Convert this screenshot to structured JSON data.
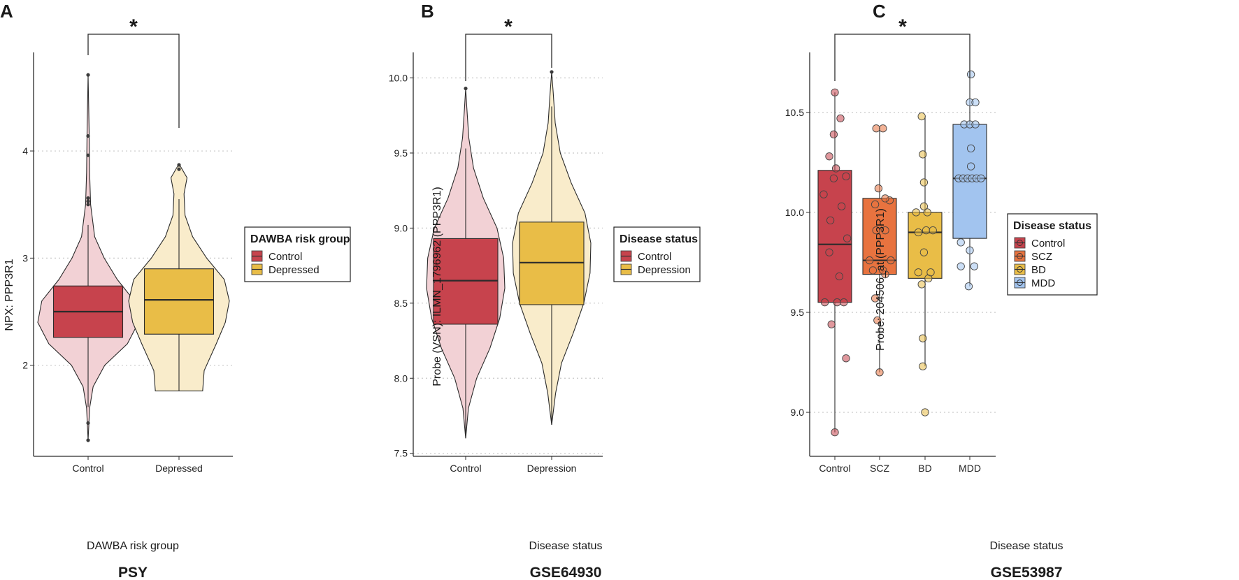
{
  "colors": {
    "control": "#c7434d",
    "control_light": "#f2d1d5",
    "depressed": "#e9bd47",
    "depressed_light": "#f9eccb",
    "scz": "#e8733f",
    "bd": "#e9bd47",
    "mdd": "#a2c4ef",
    "grid": "#c8c8c8",
    "line": "#2b2b2b"
  },
  "chart_data": [
    {
      "type": "violin+box",
      "panel": "A",
      "title": "PSY",
      "xlabel": "DAWBA risk group",
      "ylabel": "NPX: PPP3R1",
      "ylim": [
        1.15,
        4.92
      ],
      "yticks": [
        "2",
        "3",
        "4"
      ],
      "categories": [
        "Control",
        "Depressed"
      ],
      "legend": {
        "title": "DAWBA risk group",
        "entries": [
          "Control",
          "Depressed"
        ]
      },
      "significance": {
        "from": "Control",
        "to": "Depressed",
        "label": "*"
      },
      "groups": [
        {
          "name": "Control",
          "q1": 2.26,
          "median": 2.5,
          "q3": 2.74,
          "whisker_low": 1.61,
          "whisker_high": 3.31,
          "violin": [
            [
              1.3,
              0.0
            ],
            [
              1.6,
              0.03
            ],
            [
              1.8,
              0.1
            ],
            [
              2.0,
              0.33
            ],
            [
              2.2,
              0.78
            ],
            [
              2.4,
              1.0
            ],
            [
              2.6,
              0.92
            ],
            [
              2.8,
              0.58
            ],
            [
              3.0,
              0.32
            ],
            [
              3.2,
              0.13
            ],
            [
              3.5,
              0.05
            ],
            [
              3.8,
              0.03
            ],
            [
              4.2,
              0.02
            ],
            [
              4.71,
              0.0
            ]
          ],
          "outliers": [
            1.3,
            1.46,
            3.5,
            3.53,
            3.56,
            3.96,
            4.14,
            4.71
          ]
        },
        {
          "name": "Depressed",
          "q1": 2.29,
          "median": 2.61,
          "q3": 2.9,
          "whisker_low": 1.76,
          "whisker_high": 3.55,
          "violin": [
            [
              1.76,
              0.47
            ],
            [
              1.95,
              0.5
            ],
            [
              2.2,
              0.74
            ],
            [
              2.4,
              0.92
            ],
            [
              2.6,
              1.0
            ],
            [
              2.8,
              0.9
            ],
            [
              3.0,
              0.55
            ],
            [
              3.2,
              0.27
            ],
            [
              3.4,
              0.12
            ],
            [
              3.6,
              0.1
            ],
            [
              3.75,
              0.16
            ],
            [
              3.88,
              0.0
            ]
          ],
          "outliers": [
            3.83,
            3.87
          ]
        }
      ]
    },
    {
      "type": "violin+box",
      "panel": "B",
      "title": "GSE64930",
      "xlabel": "Disease status",
      "ylabel": "Probe (VSN): ILMN_1796962 (PPP3R1)",
      "ylim": [
        7.48,
        10.17
      ],
      "yticks": [
        "7.5",
        "8.0",
        "8.5",
        "9.0",
        "9.5",
        "10.0"
      ],
      "categories": [
        "Control",
        "Depression"
      ],
      "legend": {
        "title": "Disease status",
        "entries": [
          "Control",
          "Depression"
        ]
      },
      "significance": {
        "from": "Control",
        "to": "Depression",
        "label": "*"
      },
      "groups": [
        {
          "name": "Control",
          "q1": 8.36,
          "median": 8.65,
          "q3": 8.93,
          "whisker_low": 7.6,
          "whisker_high": 9.53,
          "violin": [
            [
              7.6,
              0.0
            ],
            [
              7.8,
              0.07
            ],
            [
              8.0,
              0.28
            ],
            [
              8.2,
              0.62
            ],
            [
              8.4,
              0.87
            ],
            [
              8.6,
              1.0
            ],
            [
              8.8,
              0.97
            ],
            [
              9.0,
              0.8
            ],
            [
              9.2,
              0.45
            ],
            [
              9.4,
              0.2
            ],
            [
              9.6,
              0.08
            ],
            [
              9.8,
              0.03
            ],
            [
              9.93,
              0.0
            ]
          ],
          "outliers": [
            9.93
          ]
        },
        {
          "name": "Depression",
          "q1": 8.49,
          "median": 8.77,
          "q3": 9.04,
          "whisker_low": 7.69,
          "whisker_high": 9.81,
          "violin": [
            [
              7.69,
              0.0
            ],
            [
              7.9,
              0.1
            ],
            [
              8.1,
              0.25
            ],
            [
              8.3,
              0.55
            ],
            [
              8.5,
              0.82
            ],
            [
              8.7,
              0.98
            ],
            [
              8.9,
              1.0
            ],
            [
              9.1,
              0.85
            ],
            [
              9.3,
              0.5
            ],
            [
              9.5,
              0.22
            ],
            [
              9.7,
              0.09
            ],
            [
              9.9,
              0.04
            ],
            [
              10.04,
              0.0
            ]
          ],
          "outliers": [
            10.04
          ]
        }
      ]
    },
    {
      "type": "box+points",
      "panel": "C",
      "title": "GSE53987",
      "xlabel": "Disease status",
      "ylabel": "Probe: 204506_at (PPP3R1)",
      "ylim": [
        8.78,
        10.8
      ],
      "yticks": [
        "9.0",
        "9.5",
        "10.0",
        "10.5"
      ],
      "categories": [
        "Control",
        "SCZ",
        "BD",
        "MDD"
      ],
      "legend": {
        "title": "Disease status",
        "entries": [
          "Control",
          "SCZ",
          "BD",
          "MDD"
        ]
      },
      "significance": {
        "from": "Control",
        "to": "MDD",
        "label": "*"
      },
      "groups": [
        {
          "name": "Control",
          "q1": 9.55,
          "median": 9.84,
          "q3": 10.21,
          "whisker_low": 8.9,
          "whisker_high": 10.6,
          "points": [
            8.9,
            9.27,
            9.44,
            9.55,
            9.55,
            9.55,
            9.68,
            9.8,
            9.87,
            9.96,
            10.03,
            10.09,
            10.17,
            10.18,
            10.22,
            10.28,
            10.39,
            10.47,
            10.6
          ],
          "jitter": [
            0,
            1.0,
            -0.3,
            -0.9,
            0.2,
            0.8,
            0.4,
            -0.5,
            1.1,
            -0.4,
            0.6,
            -1.0,
            -0.1,
            1.0,
            0.1,
            -0.5,
            -0.1,
            0.5,
            0
          ]
        },
        {
          "name": "SCZ",
          "q1": 9.69,
          "median": 9.76,
          "q3": 10.07,
          "whisker_low": 9.2,
          "whisker_high": 10.42,
          "points": [
            9.2,
            9.46,
            9.57,
            9.69,
            9.71,
            9.71,
            9.76,
            9.76,
            9.91,
            9.91,
            10.04,
            10.06,
            10.07,
            10.12,
            10.42,
            10.42
          ],
          "jitter": [
            0,
            -0.2,
            -0.4,
            0.5,
            -0.6,
            0.3,
            -0.9,
            1.0,
            -0.3,
            0.5,
            -0.4,
            0.9,
            0.5,
            -0.1,
            -0.3,
            0.3
          ]
        },
        {
          "name": "BD",
          "q1": 9.67,
          "median": 9.9,
          "q3": 10.0,
          "whisker_low": 9.23,
          "whisker_high": 10.48,
          "points": [
            9.0,
            9.23,
            9.37,
            9.64,
            9.67,
            9.7,
            9.7,
            9.8,
            9.9,
            9.91,
            9.91,
            10.0,
            10.0,
            10.03,
            10.15,
            10.29,
            10.48
          ],
          "jitter": [
            0,
            -0.2,
            -0.2,
            -0.3,
            0.3,
            -0.6,
            0.5,
            -0.1,
            -0.6,
            0.1,
            0.7,
            -0.8,
            0.2,
            -0.1,
            -0.1,
            -0.2,
            -0.3
          ]
        },
        {
          "name": "MDD",
          "q1": 9.87,
          "median": 10.17,
          "q3": 10.44,
          "whisker_low": 9.63,
          "whisker_high": 10.69,
          "points": [
            9.63,
            9.73,
            9.73,
            9.81,
            9.85,
            10.17,
            10.17,
            10.17,
            10.17,
            10.17,
            10.17,
            10.23,
            10.32,
            10.44,
            10.44,
            10.44,
            10.55,
            10.55,
            10.69
          ],
          "jitter": [
            -0.1,
            -0.8,
            0.4,
            0.0,
            -0.8,
            -1.0,
            -0.6,
            -0.2,
            0.2,
            0.6,
            1.0,
            0.1,
            0.1,
            -0.5,
            0.0,
            0.5,
            0.0,
            0.5,
            0.1
          ]
        }
      ]
    }
  ]
}
